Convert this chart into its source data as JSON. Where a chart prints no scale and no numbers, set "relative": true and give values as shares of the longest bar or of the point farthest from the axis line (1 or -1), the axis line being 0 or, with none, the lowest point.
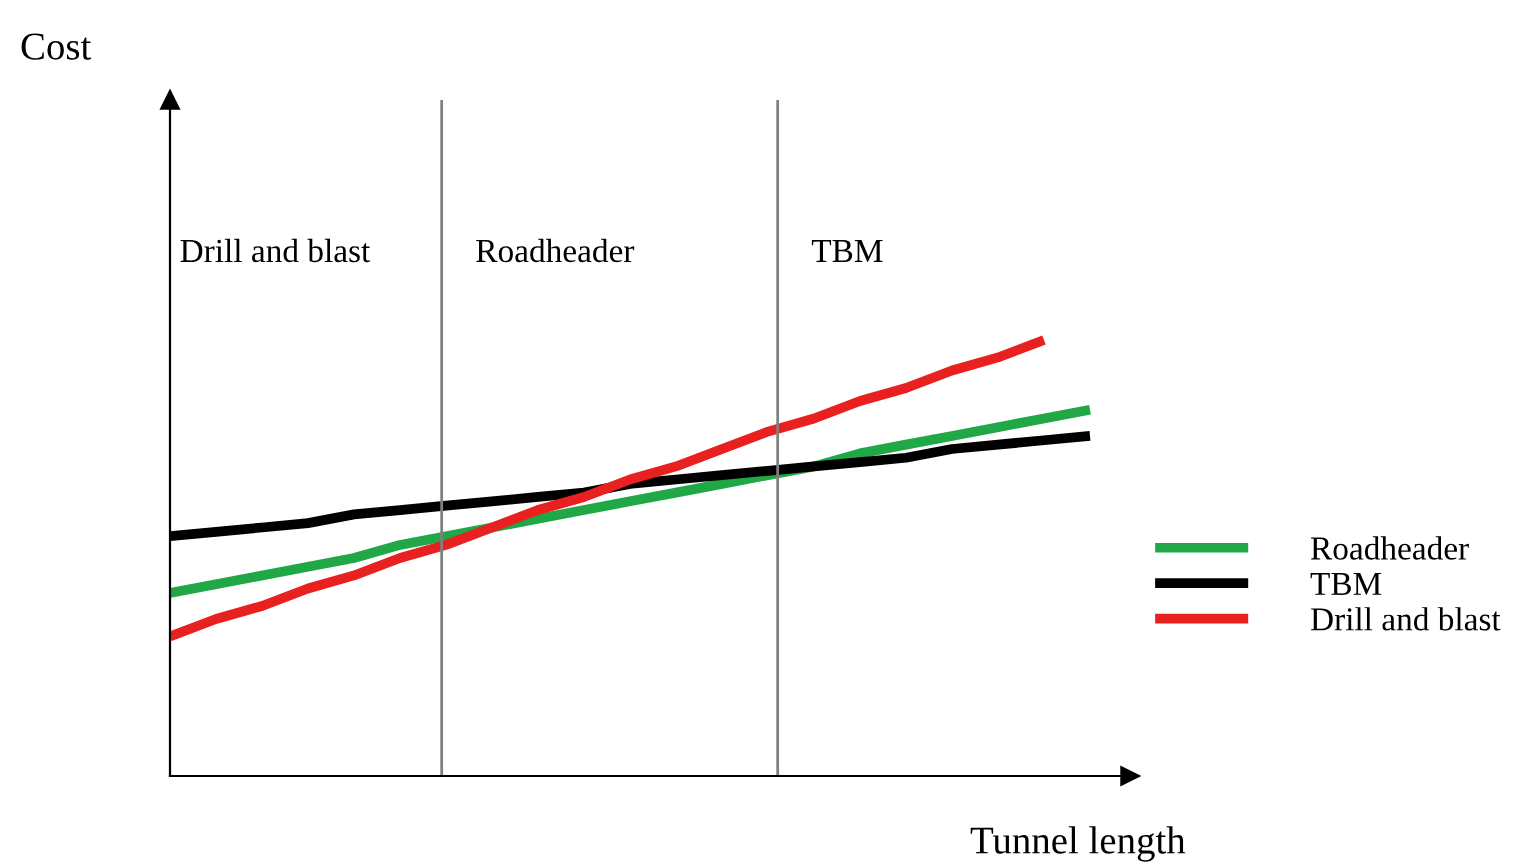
{
  "chart_data": {
    "type": "line",
    "relative": true,
    "xlabel": "Tunnel length",
    "legend": "right",
    "marker": "none",
    "line_style": "solid",
    "categories": [
      null,
      null,
      null,
      null,
      null,
      null,
      null,
      null,
      null,
      null,
      null,
      null,
      null,
      null,
      null,
      null,
      null,
      null,
      null,
      null,
      null
    ],
    "series": [
      {
        "name": "Roadheader",
        "color": "#1fa845",
        "values": [
          0.42,
          0.44,
          0.46,
          0.48,
          0.5,
          0.53,
          0.55,
          0.57,
          0.59,
          0.61,
          0.63,
          0.65,
          0.67,
          0.69,
          0.71,
          0.74,
          0.76,
          0.78,
          0.8,
          0.82,
          0.84
        ]
      },
      {
        "name": "TBM",
        "color": "#000000",
        "values": [
          0.55,
          0.56,
          0.57,
          0.58,
          0.6,
          0.61,
          0.62,
          0.63,
          0.64,
          0.65,
          0.67,
          0.68,
          0.69,
          0.7,
          0.71,
          0.72,
          0.73,
          0.75,
          0.76,
          0.77,
          0.78
        ]
      },
      {
        "name": "Drill and blast",
        "color": "#e8201f",
        "values": [
          0.32,
          0.36,
          0.39,
          0.43,
          0.46,
          0.5,
          0.53,
          0.57,
          0.61,
          0.64,
          0.68,
          0.71,
          0.75,
          0.79,
          0.82,
          0.86,
          0.89,
          0.93,
          0.96,
          1.0,
          null
        ]
      }
    ],
    "annotations": [
      "Drill and blast",
      "Roadheader",
      "TBM",
      "Cost"
    ]
  }
}
